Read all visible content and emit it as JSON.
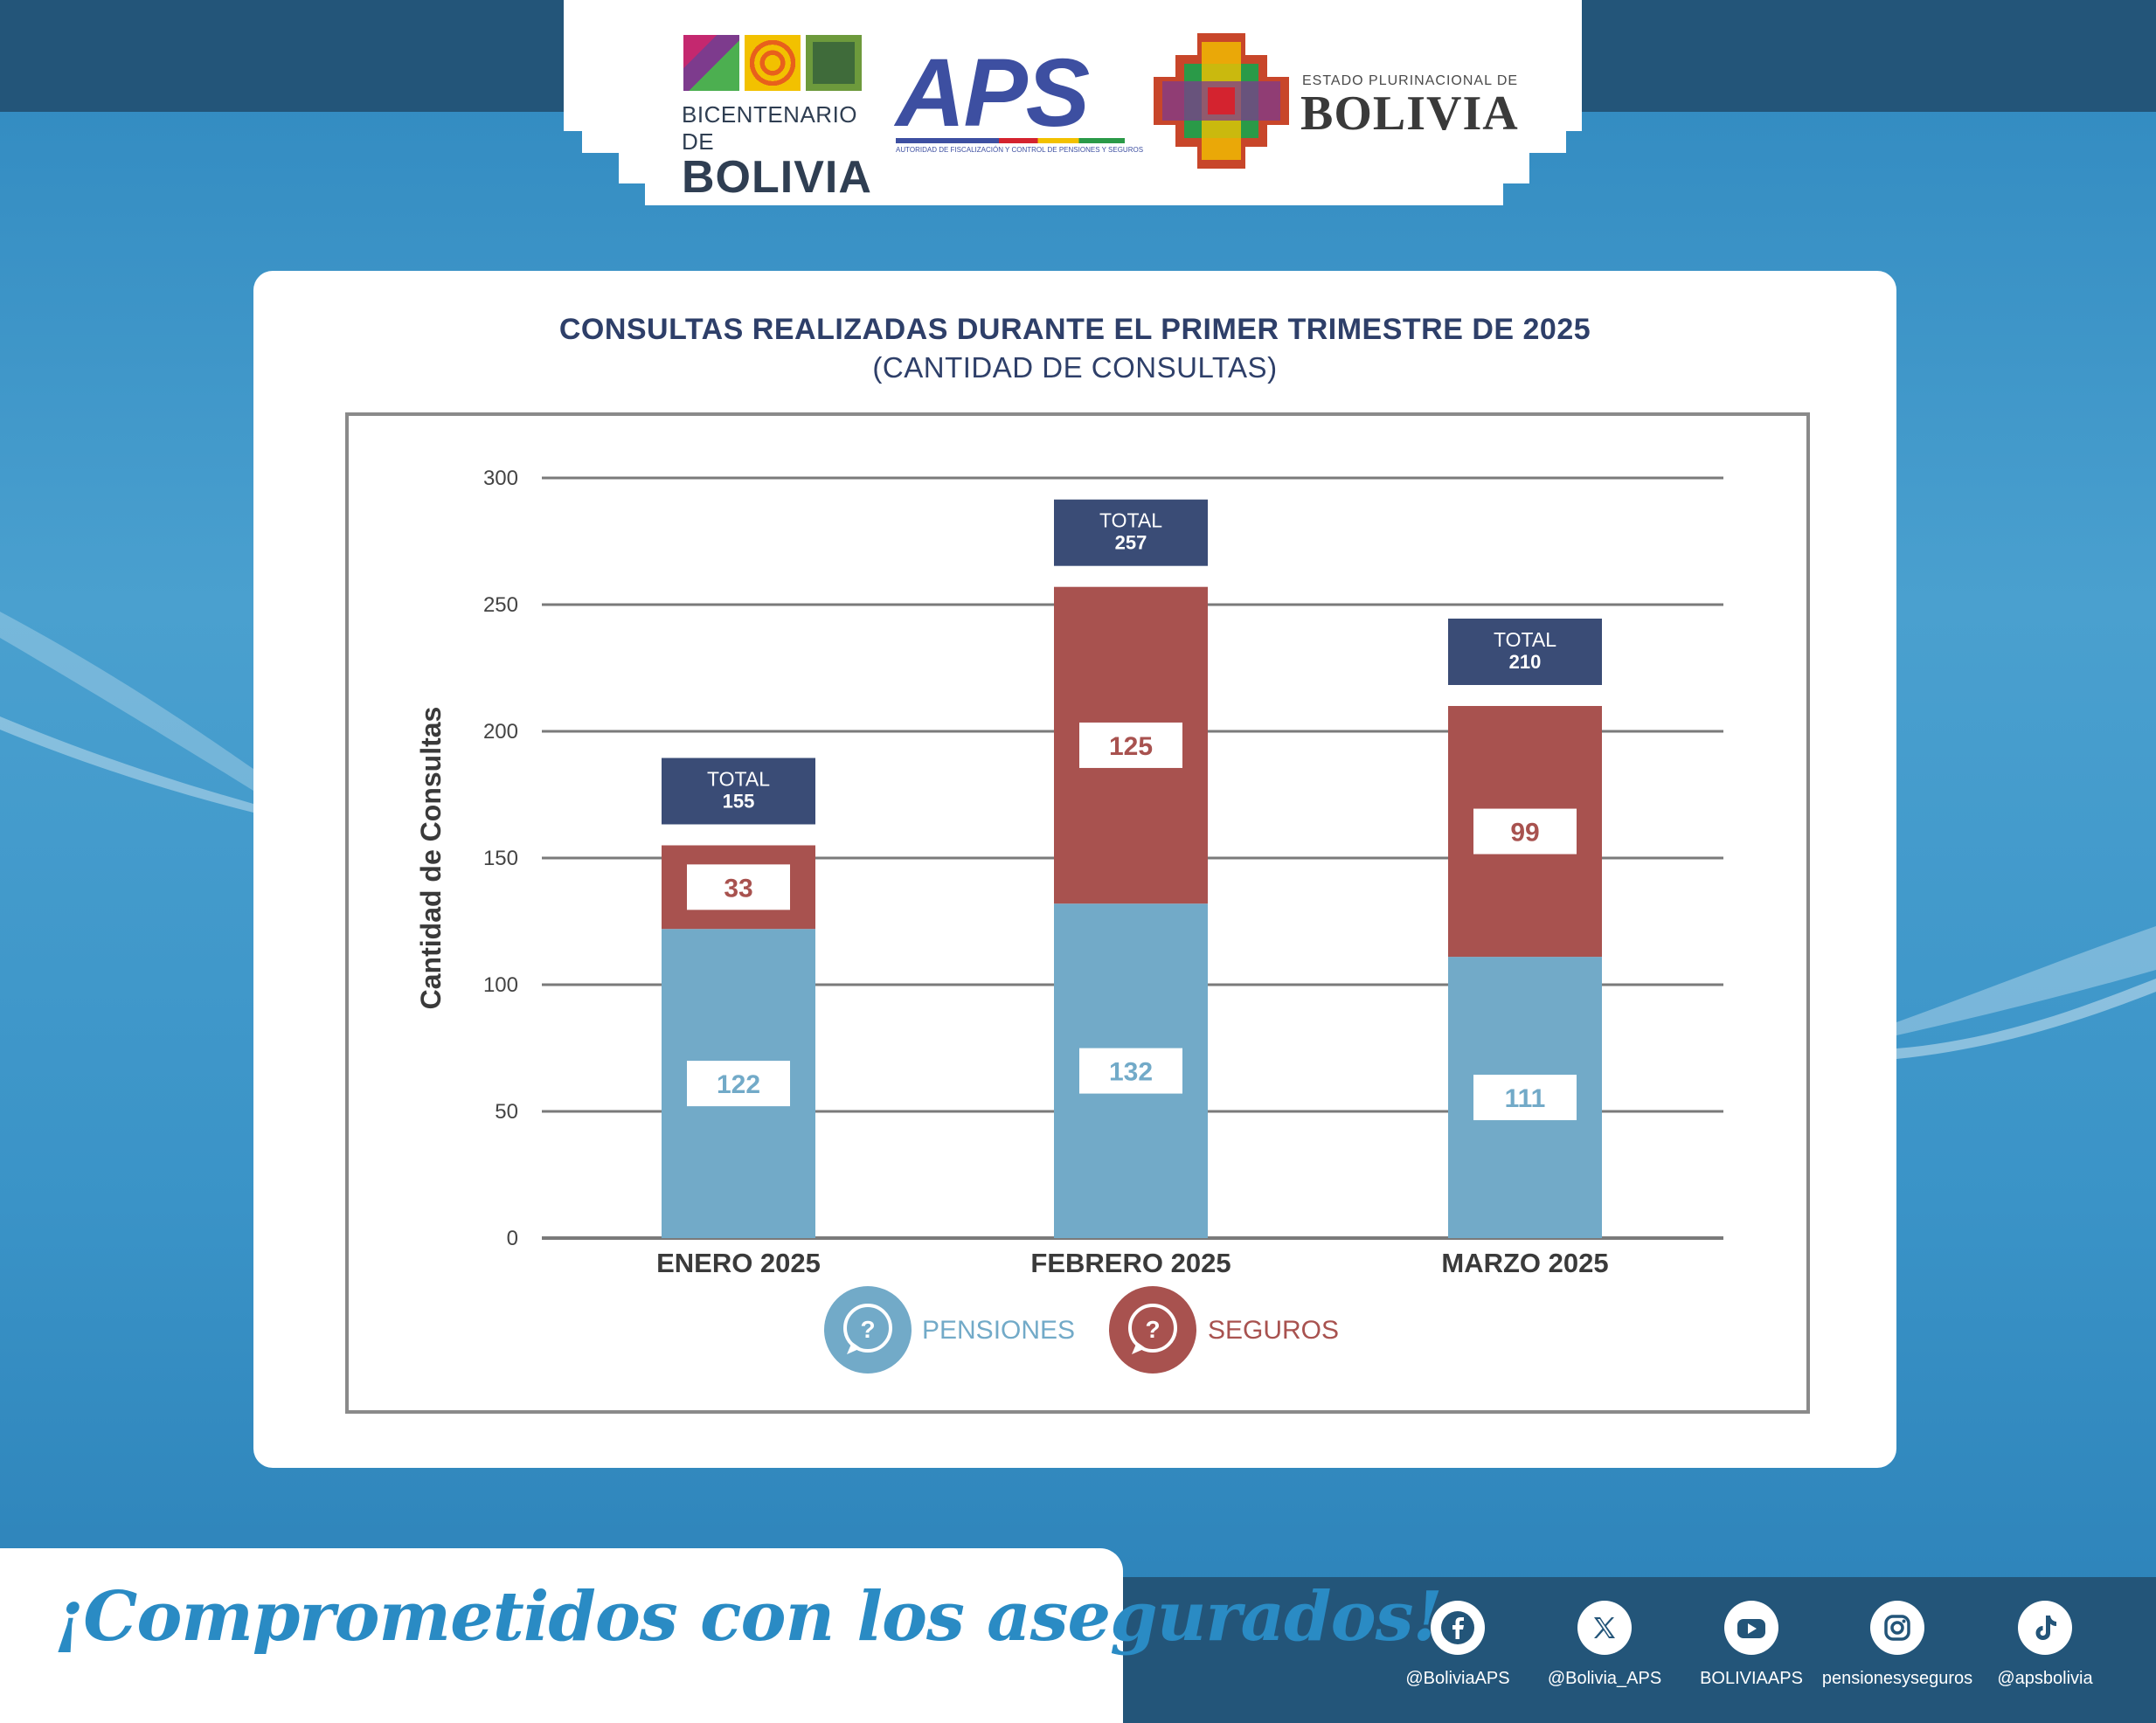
{
  "header": {
    "bicentenario_line1": "BICENTENARIO DE",
    "bicentenario_line2": "BOLIVIA",
    "aps_logo": "APS",
    "aps_subtitle": "AUTORIDAD DE FISCALIZACIÓN Y CONTROL DE PENSIONES Y SEGUROS",
    "estado_line1": "ESTADO PLURINACIONAL DE",
    "estado_line2": "BOLIVIA"
  },
  "colors": {
    "pensiones": "#72aac8",
    "seguros": "#a8524f",
    "total_box": "#3a4c76",
    "title": "#2e3f69",
    "band": "#235579"
  },
  "chart_data": {
    "type": "bar",
    "stacked": true,
    "title": "CONSULTAS REALIZADAS DURANTE EL PRIMER TRIMESTRE DE 2025",
    "subtitle": "(CANTIDAD DE CONSULTAS)",
    "ylabel": "Cantidad de Consultas",
    "xlabel": "",
    "ylim": [
      0,
      300
    ],
    "yticks": [
      0,
      50,
      100,
      150,
      200,
      250,
      300
    ],
    "grid": true,
    "categories": [
      "ENERO 2025",
      "FEBRERO 2025",
      "MARZO 2025"
    ],
    "series": [
      {
        "name": "PENSIONES",
        "values": [
          122,
          132,
          111
        ]
      },
      {
        "name": "SEGUROS",
        "values": [
          33,
          125,
          99
        ]
      }
    ],
    "total_label": "TOTAL",
    "totals": [
      155,
      257,
      210
    ],
    "legend": [
      "PENSIONES",
      "SEGUROS"
    ],
    "legend_position": "bottom-center"
  },
  "footer": {
    "slogan": "¡Comprometidos con los asegurados!",
    "social": [
      {
        "icon": "facebook-icon",
        "handle": "@BoliviaAPS"
      },
      {
        "icon": "x-icon",
        "handle": "@Bolivia_APS"
      },
      {
        "icon": "youtube-icon",
        "handle": "BOLIVIAAPS"
      },
      {
        "icon": "instagram-icon",
        "handle": "pensionesyseguros"
      },
      {
        "icon": "tiktok-icon",
        "handle": "@apsbolivia"
      }
    ]
  }
}
